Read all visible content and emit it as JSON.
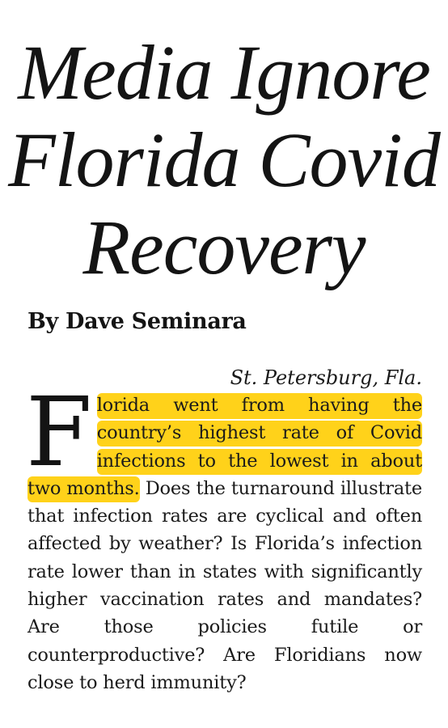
{
  "article": {
    "headline": "Media Ignore Florida Covid Recovery",
    "byline": "By Dave Seminara",
    "dateline": "St. Petersburg, Fla.",
    "drop_cap": "F",
    "highlighted_text": "lorida went from having the country’s highest rate of Covid infections to the lowest in about two months.",
    "body_text": " Does the turnaround illustrate that infection rates are cyclical and often affected by weather? Is Florida’s infection rate lower than in states with significantly higher vaccination rates and mandates? Are those policies futile or counterproductive? Are Floridians now close to herd immunity?"
  },
  "colors": {
    "highlight": "#ffd21a",
    "text": "#1a1a1a"
  }
}
